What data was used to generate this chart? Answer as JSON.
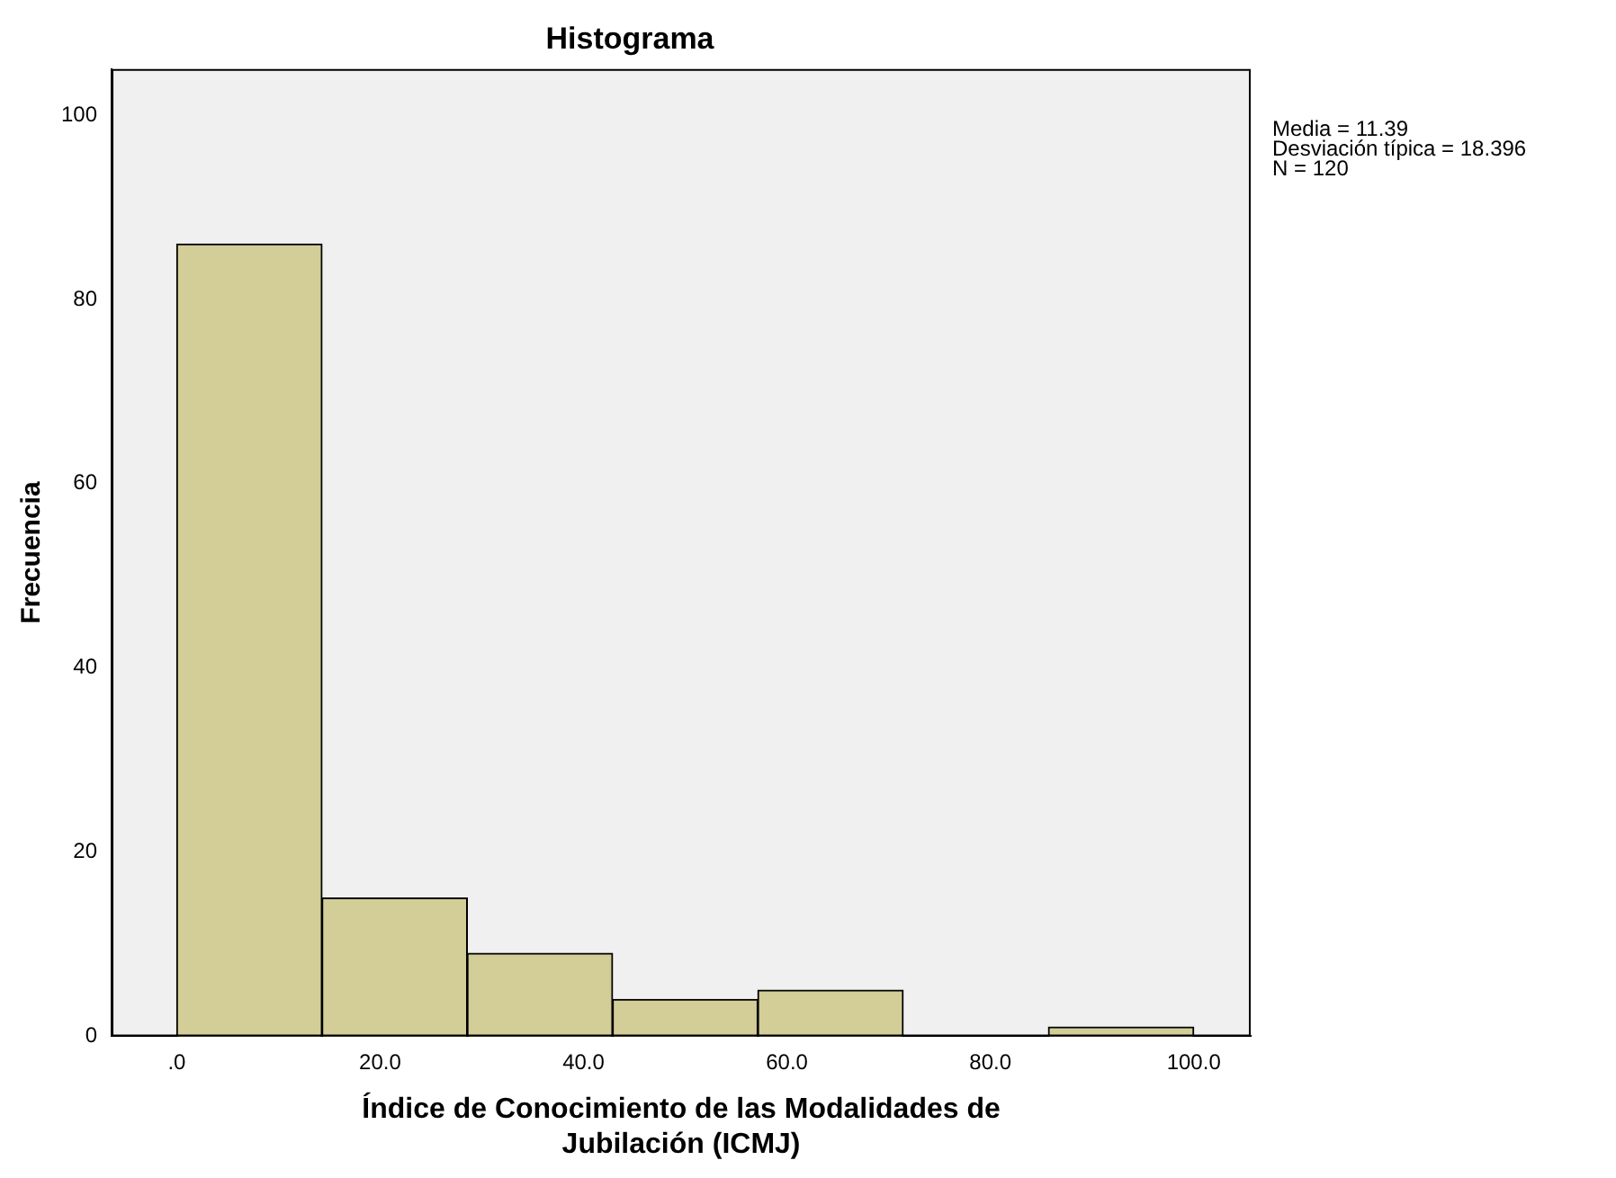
{
  "chart_data": {
    "type": "histogram",
    "title": "Histograma",
    "xlabel": "Índice de Conocimiento de las Modalidades de Jubilación (ICMJ)",
    "ylabel": "Frecuencia",
    "bins": [
      0,
      14.29,
      28.57,
      42.86,
      57.14,
      71.43,
      85.71,
      100
    ],
    "values": [
      86,
      15,
      9,
      4,
      5,
      0,
      1
    ],
    "color": "#d3ce98",
    "xlim": [
      -6.4,
      105.6
    ],
    "ylim": [
      0,
      105
    ],
    "xticks": [
      {
        "value": 0,
        "label": ".0"
      },
      {
        "value": 20,
        "label": "20.0"
      },
      {
        "value": 40,
        "label": "40.0"
      },
      {
        "value": 60,
        "label": "60.0"
      },
      {
        "value": 80,
        "label": "80.0"
      },
      {
        "value": 100,
        "label": "100.0"
      }
    ],
    "yticks": [
      0,
      20,
      40,
      60,
      80,
      100
    ],
    "annotations": [
      "Media = 11.39",
      "Desviación típica = 18.396",
      "N = 120"
    ]
  }
}
